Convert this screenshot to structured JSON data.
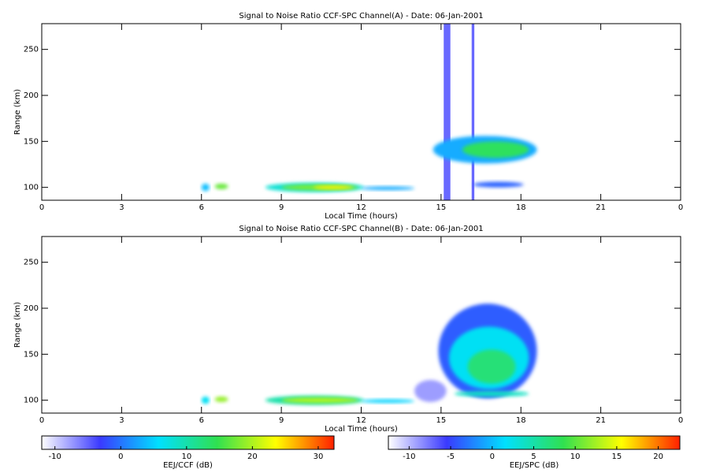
{
  "chart_data": [
    {
      "type": "heatmap",
      "title": "Signal to Noise Ratio CCF-SPC Channel(A) - Date: 06-Jan-2001",
      "x_label": "Local Time (hours)",
      "y_label": "Range (km)",
      "xlim": [
        0,
        24
      ],
      "xticks": [
        0,
        3,
        6,
        9,
        12,
        15,
        18,
        21,
        {
          "value": 24,
          "label": "0"
        }
      ],
      "ylim": [
        86,
        278
      ],
      "yticks": [
        100,
        150,
        200,
        250
      ],
      "colormap": [
        "#ffffff",
        "#3a3aff",
        "#00e0ff",
        "#30e050",
        "#ffff00",
        "#ff2000"
      ],
      "colorbar": {
        "label": "EEJ/CCF (dB)",
        "lim": [
          -12,
          32.4
        ],
        "ticks": [
          -10,
          0,
          10,
          20,
          30
        ]
      },
      "blobs": [
        {
          "x0": 6.0,
          "x1": 6.3,
          "y0": 96,
          "y1": 104,
          "value": 4
        },
        {
          "x0": 6.5,
          "x1": 7.0,
          "y0": 98,
          "y1": 104,
          "value": 17
        },
        {
          "x0": 8.4,
          "x1": 12.1,
          "y0": 95,
          "y1": 105,
          "value": 8
        },
        {
          "x0": 9.0,
          "x1": 11.9,
          "y0": 97,
          "y1": 103,
          "value": 18
        },
        {
          "x0": 10.2,
          "x1": 11.7,
          "y0": 98,
          "y1": 102,
          "value": 24
        },
        {
          "x0": 12.0,
          "x1": 14.0,
          "y0": 97,
          "y1": 101,
          "value": 3
        },
        {
          "x0": 14.7,
          "x1": 18.6,
          "y0": 126,
          "y1": 156,
          "value": 3
        },
        {
          "x0": 15.8,
          "x1": 18.3,
          "y0": 132,
          "y1": 150,
          "value": 14
        },
        {
          "x0": 16.2,
          "x1": 18.1,
          "y0": 100,
          "y1": 106,
          "value": -1
        }
      ],
      "stripes": [
        {
          "x0": 15.1,
          "x1": 15.35,
          "value": -4
        },
        {
          "x0": 16.15,
          "x1": 16.25,
          "value": -4
        }
      ]
    },
    {
      "type": "heatmap",
      "title": "Signal to Noise Ratio CCF-SPC Channel(B) - Date: 06-Jan-2001",
      "x_label": "Local Time (hours)",
      "y_label": "Range (km)",
      "xlim": [
        0,
        24
      ],
      "xticks": [
        0,
        3,
        6,
        9,
        12,
        15,
        18,
        21,
        {
          "value": 24,
          "label": "0"
        }
      ],
      "ylim": [
        86,
        278
      ],
      "yticks": [
        100,
        150,
        200,
        250
      ],
      "colormap": [
        "#ffffff",
        "#3a3aff",
        "#00e0ff",
        "#30e050",
        "#ffff00",
        "#ff2000"
      ],
      "colorbar": {
        "label": "EEJ/SPC (dB)",
        "lim": [
          -12.5,
          22.6
        ],
        "ticks": [
          -10,
          -5,
          0,
          5,
          10,
          15,
          20
        ]
      },
      "blobs": [
        {
          "x0": 6.0,
          "x1": 6.3,
          "y0": 96,
          "y1": 104,
          "value": 2
        },
        {
          "x0": 6.5,
          "x1": 7.0,
          "y0": 98,
          "y1": 104,
          "value": 12
        },
        {
          "x0": 8.4,
          "x1": 12.1,
          "y0": 95,
          "y1": 105,
          "value": 5
        },
        {
          "x0": 9.0,
          "x1": 11.9,
          "y0": 97,
          "y1": 103,
          "value": 13
        },
        {
          "x0": 12.0,
          "x1": 14.0,
          "y0": 97,
          "y1": 101,
          "value": 1
        },
        {
          "x0": 14.0,
          "x1": 15.2,
          "y0": 98,
          "y1": 122,
          "value": -9
        },
        {
          "x0": 14.9,
          "x1": 18.6,
          "y0": 102,
          "y1": 205,
          "value": -4
        },
        {
          "x0": 15.3,
          "x1": 18.3,
          "y0": 112,
          "y1": 180,
          "value": 2
        },
        {
          "x0": 16.0,
          "x1": 17.8,
          "y0": 118,
          "y1": 155,
          "value": 7
        },
        {
          "x0": 15.5,
          "x1": 18.3,
          "y0": 104,
          "y1": 110,
          "value": 4
        }
      ],
      "stripes": []
    }
  ]
}
